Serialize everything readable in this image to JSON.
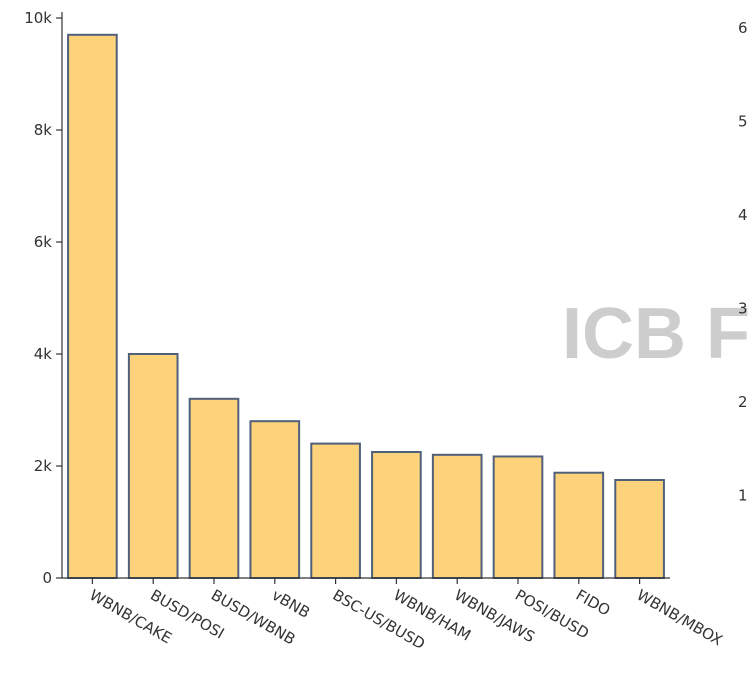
{
  "watermark": "ICB F",
  "right_axis_ticks": [
    "6",
    "5",
    "4",
    "3",
    "2",
    "1"
  ],
  "chart_data": {
    "type": "bar",
    "categories": [
      "WBNB/CAKE",
      "BUSD/POSI",
      "BUSD/WBNB",
      "vBNB",
      "BSC-US/BUSD",
      "WBNB/HAM",
      "WBNB/JAWS",
      "POSI/BUSD",
      "FIDO",
      "WBNB/MBOX"
    ],
    "values": [
      9700,
      4000,
      3200,
      2800,
      2400,
      2250,
      2200,
      2170,
      1880,
      1750
    ],
    "ylim": [
      0,
      10000
    ],
    "yticks": [
      0,
      2000,
      4000,
      6000,
      8000,
      10000
    ],
    "ytick_labels": [
      "0",
      "2k",
      "4k",
      "6k",
      "8k",
      "10k"
    ],
    "grid": false,
    "bar_fill": "#fcd37a",
    "bar_stroke": "#50607a",
    "title": "",
    "xlabel": "",
    "ylabel": ""
  }
}
